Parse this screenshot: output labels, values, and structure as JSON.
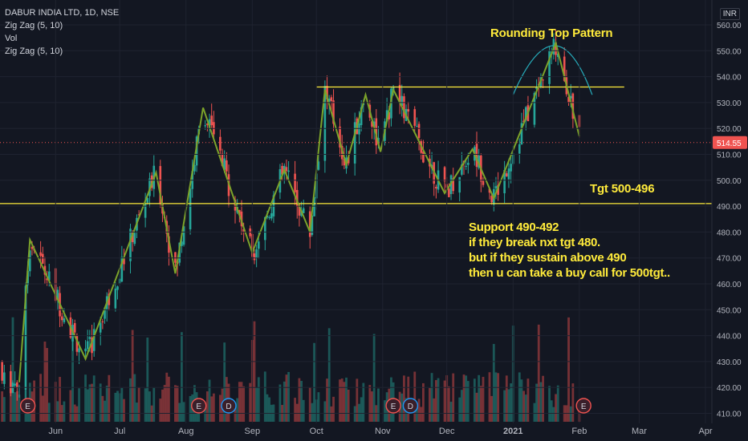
{
  "header": {
    "symbol": "DABUR INDIA LTD, 1D, NSE",
    "indicators": [
      "Zig Zag (5, 10)",
      "Vol",
      "Zig Zag (5, 10)"
    ]
  },
  "currency": "INR",
  "annotations": {
    "pattern_label": "Rounding Top Pattern",
    "target_label": "Tgt 500-496",
    "notes": [
      "Support 490-492",
      "if they break nxt tgt 480.",
      "but if they sustain  above 490",
      "then u can take a buy call for 500tgt.."
    ]
  },
  "colors": {
    "background": "#131722",
    "up": "#26a69a",
    "down": "#ef5350",
    "zigzag": "#7ca32a",
    "annotation": "#ffeb3b",
    "arc": "#26a6b5"
  },
  "chart_data": {
    "type": "candlestick",
    "symbol": "DABUR INDIA LTD",
    "interval": "1D",
    "exchange": "NSE",
    "ylim": [
      408,
      563
    ],
    "y_ticks": [
      410,
      420,
      430,
      440,
      450,
      460,
      470,
      480,
      490,
      500,
      510,
      520,
      530,
      540,
      550,
      560
    ],
    "y_tick_labels": [
      "410.00",
      "420.00",
      "430.00",
      "440.00",
      "450.00",
      "460.00",
      "470.00",
      "480.00",
      "490.00",
      "500.00",
      "510.00",
      "520.00",
      "530.00",
      "540.00",
      "550.00",
      "560.00"
    ],
    "x_labels": [
      "Jun",
      "Jul",
      "Aug",
      "Sep",
      "Oct",
      "Nov",
      "Dec",
      "2021",
      "Feb",
      "Mar",
      "Apr"
    ],
    "x_label_dates": [
      "2020-06-01",
      "2020-07-01",
      "2020-08-01",
      "2020-09-01",
      "2020-10-01",
      "2020-11-01",
      "2020-12-01",
      "2021-01-01",
      "2021-02-01",
      "2021-03-01",
      "2021-04-01"
    ],
    "x_range": [
      "2020-05-06",
      "2021-04-04"
    ],
    "last_price": 514.55,
    "last_price_label": "514.55",
    "zigzag": [
      {
        "date": "2020-05-15",
        "price": 422
      },
      {
        "date": "2020-05-20",
        "price": 477
      },
      {
        "date": "2020-06-15",
        "price": 431
      },
      {
        "date": "2020-07-18",
        "price": 503
      },
      {
        "date": "2020-07-27",
        "price": 464
      },
      {
        "date": "2020-08-09",
        "price": 528
      },
      {
        "date": "2020-09-01",
        "price": 472
      },
      {
        "date": "2020-09-16",
        "price": 504
      },
      {
        "date": "2020-09-28",
        "price": 480
      },
      {
        "date": "2020-10-05",
        "price": 535
      },
      {
        "date": "2020-10-15",
        "price": 506
      },
      {
        "date": "2020-10-24",
        "price": 533
      },
      {
        "date": "2020-10-31",
        "price": 511
      },
      {
        "date": "2020-11-06",
        "price": 535
      },
      {
        "date": "2020-11-30",
        "price": 495
      },
      {
        "date": "2020-12-13",
        "price": 512
      },
      {
        "date": "2020-12-23",
        "price": 493
      },
      {
        "date": "2021-01-21",
        "price": 553
      },
      {
        "date": "2021-02-01",
        "price": 517
      }
    ],
    "horizontal_lines": [
      {
        "price": 536,
        "from": "2020-10-01",
        "to": "2021-02-22"
      },
      {
        "price": 491,
        "from": "2020-05-06",
        "to": "2021-04-04"
      }
    ],
    "rounding_top": {
      "start": "2021-01-01",
      "peak": "2021-01-21",
      "end": "2021-02-07",
      "base_price": 533,
      "peak_price": 552
    },
    "events": [
      {
        "type": "E",
        "date": "2020-05-19"
      },
      {
        "type": "E",
        "date": "2020-08-07"
      },
      {
        "type": "D",
        "date": "2020-08-21"
      },
      {
        "type": "E",
        "date": "2020-11-06"
      },
      {
        "type": "D",
        "date": "2020-11-14"
      },
      {
        "type": "E",
        "date": "2021-02-03"
      }
    ],
    "title": "",
    "xlabel": "",
    "ylabel": ""
  }
}
